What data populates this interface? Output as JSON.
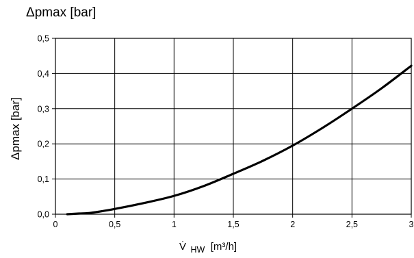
{
  "chart_data": {
    "type": "line",
    "title": "Δpmax [bar]",
    "ylabel": "Δpmax [bar]",
    "xlabel_symbol": "V̇",
    "xlabel_subscript": "HW",
    "xlabel_unit": "[m³/h]",
    "xlim": [
      0,
      3
    ],
    "ylim": [
      0,
      0.5
    ],
    "grid": true,
    "x_ticks": [
      0,
      0.5,
      1,
      1.5,
      2,
      2.5,
      3
    ],
    "y_ticks": [
      0,
      0.1,
      0.2,
      0.3,
      0.4,
      0.5
    ],
    "x_tick_labels": [
      "0",
      "0,5",
      "1",
      "1,5",
      "2",
      "2,5",
      "3"
    ],
    "y_tick_labels": [
      "0,0",
      "0,1",
      "0,2",
      "0,3",
      "0,4",
      "0,5"
    ],
    "series": [
      {
        "color": "#000000",
        "x": [
          0.1,
          0.2,
          0.3,
          0.5,
          0.75,
          1.0,
          1.25,
          1.5,
          1.75,
          2.0,
          2.25,
          2.5,
          2.75,
          3.0
        ],
        "values": [
          0.0,
          0.002,
          0.004,
          0.015,
          0.032,
          0.052,
          0.08,
          0.115,
          0.152,
          0.195,
          0.245,
          0.3,
          0.358,
          0.422
        ]
      }
    ]
  }
}
